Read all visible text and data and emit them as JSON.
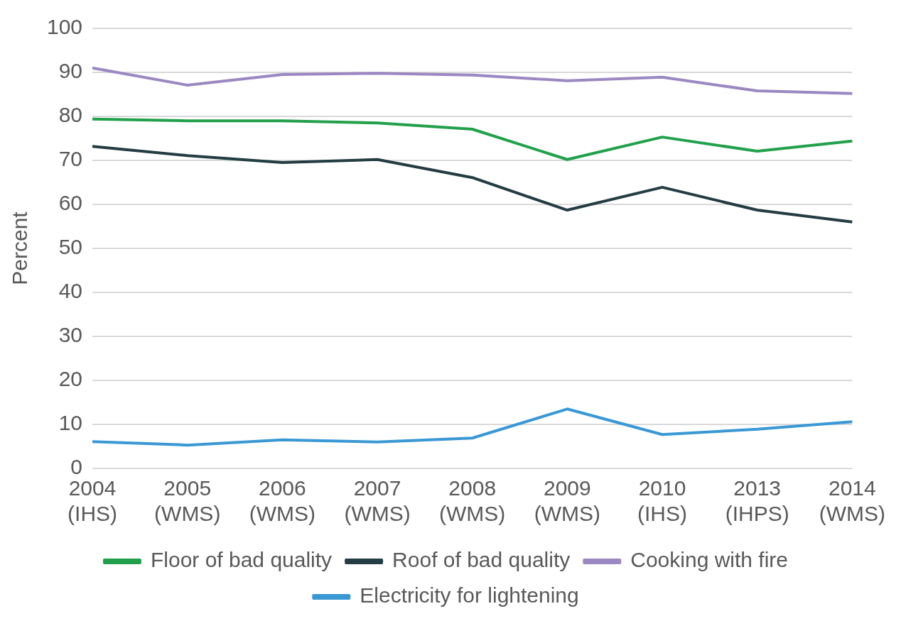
{
  "chart_data": {
    "type": "line",
    "ylabel": "Percent",
    "categories": [
      "2004 (IHS)",
      "2005 (WMS)",
      "2006 (WMS)",
      "2007 (WMS)",
      "2008 (WMS)",
      "2009 (WMS)",
      "2010 (IHS)",
      "2013 (IHPS)",
      "2014 (WMS)"
    ],
    "series": [
      {
        "name": "Floor of bad quality",
        "color": "#22a04b",
        "values": [
          79.4,
          79.0,
          79.0,
          78.5,
          77.1,
          70.2,
          75.3,
          72.1,
          74.4
        ]
      },
      {
        "name": "Roof of bad quality",
        "color": "#243c43",
        "values": [
          73.2,
          71.1,
          69.5,
          70.2,
          66.1,
          58.7,
          63.9,
          58.7,
          56.0
        ]
      },
      {
        "name": "Cooking with fire",
        "color": "#9b88c2",
        "values": [
          91.0,
          87.1,
          89.5,
          89.8,
          89.4,
          88.1,
          88.9,
          85.8,
          85.2
        ]
      },
      {
        "name": "Electricity for lightening",
        "color": "#3a98d4",
        "values": [
          6.1,
          5.3,
          6.5,
          6.0,
          6.9,
          13.5,
          7.7,
          8.9,
          10.6
        ]
      }
    ],
    "ylim": [
      0,
      100
    ],
    "yticks": [
      0,
      10,
      20,
      30,
      40,
      50,
      60,
      70,
      80,
      90,
      100
    ],
    "grid": "y",
    "legend": "bottom",
    "marker": "none",
    "line_style": "solid"
  }
}
